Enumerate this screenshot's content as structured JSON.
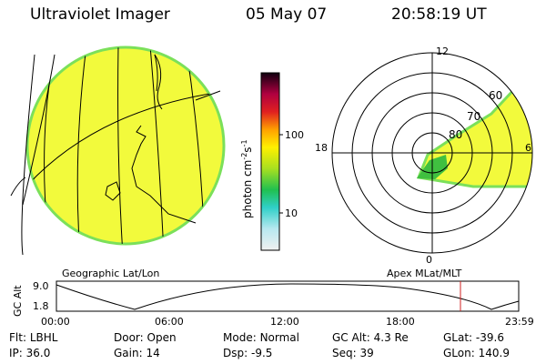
{
  "header": {
    "title": "Ultraviolet Imager",
    "date": "05 May 07",
    "time": "20:58:19 UT"
  },
  "colorbar": {
    "unit_label": "photon cm",
    "unit_exp1": "-2",
    "unit_mid": "s",
    "unit_exp2": "-1",
    "ticks": [
      "100",
      "10"
    ]
  },
  "polar": {
    "mlt_labels": {
      "top": "12",
      "left": "18",
      "right": "6",
      "bottom": "0"
    },
    "lat_labels": [
      "60",
      "70",
      "80"
    ]
  },
  "panel_labels": {
    "left": "Geographic Lat/Lon",
    "right": "Apex MLat/MLT"
  },
  "orbit": {
    "axis_label": "GC Alt",
    "y_ticks": [
      "9.0",
      "1.8"
    ],
    "x_ticks": [
      "00:00",
      "06:00",
      "12:00",
      "18:00",
      "23:59"
    ]
  },
  "status": {
    "row1": [
      {
        "key": "Flt:",
        "value": "LBHL"
      },
      {
        "key": "Door:",
        "value": "Open"
      },
      {
        "key": "Mode:",
        "value": "Normal"
      },
      {
        "key": "GC Alt:",
        "value": "4.3 Re"
      },
      {
        "key": "GLat:",
        "value": "-39.6"
      }
    ],
    "row2": [
      {
        "key": "IP:",
        "value": "36.0"
      },
      {
        "key": "Gain:",
        "value": "14"
      },
      {
        "key": "Dsp:",
        "value": "-9.5"
      },
      {
        "key": "Seq:",
        "value": "39"
      },
      {
        "key": "GLon:",
        "value": "140.9"
      }
    ]
  },
  "colors": {
    "image_fill": "#f2fa3c",
    "image_edge": "#7be05a",
    "marker": "#d02020"
  }
}
